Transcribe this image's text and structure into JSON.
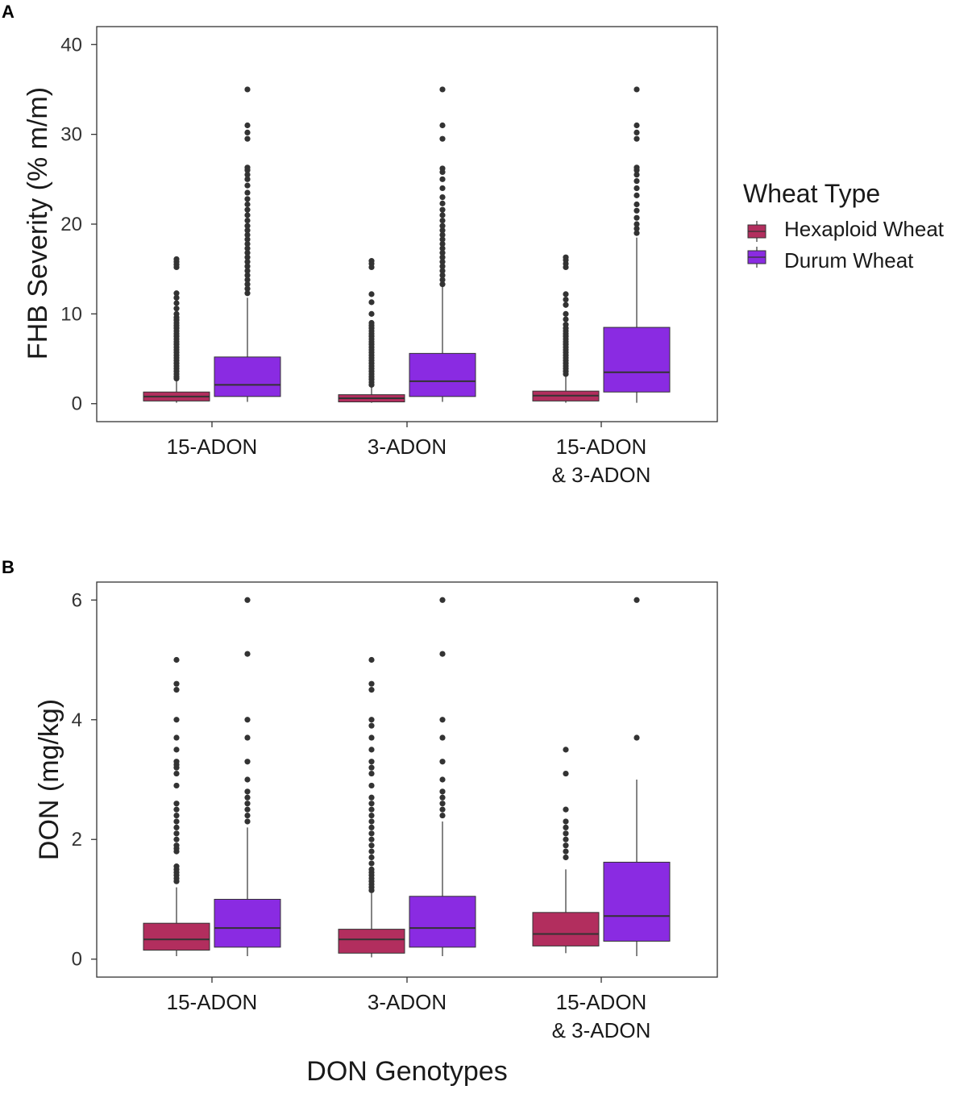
{
  "colors": {
    "hexaploid": "#b22e5e",
    "durum": "#8a2be2",
    "median": "#333333",
    "outlier": "#333333",
    "frame": "#333333"
  },
  "legend": {
    "title": "Wheat Type",
    "items": [
      "Hexaploid Wheat",
      "Durum Wheat"
    ]
  },
  "xlabel": "DON Genotypes",
  "chart_data": [
    {
      "panel": "A",
      "type": "boxplot",
      "ylabel": "FHB Severity (% m/m)",
      "ylim": [
        -2,
        42
      ],
      "yticks": [
        0,
        10,
        20,
        30,
        40
      ],
      "categories": [
        [
          "15-ADON"
        ],
        [
          "3-ADON"
        ],
        [
          "15-ADON",
          "& 3-ADON"
        ]
      ],
      "series": [
        {
          "name": "Hexaploid Wheat",
          "boxes": [
            {
              "min": 0.1,
              "q1": 0.3,
              "median": 0.8,
              "q3": 1.3,
              "max": 2.6,
              "outliers": [
                2.8,
                3.0,
                3.3,
                3.6,
                3.9,
                4.2,
                4.5,
                4.8,
                5.1,
                5.4,
                5.7,
                6.0,
                6.3,
                6.6,
                6.9,
                7.2,
                7.5,
                7.8,
                8.1,
                8.4,
                8.7,
                9.0,
                9.3,
                9.6,
                10.0,
                10.6,
                11.2,
                11.8,
                12.3,
                15.2,
                15.5,
                15.8,
                16.1
              ]
            },
            {
              "min": 0.1,
              "q1": 0.2,
              "median": 0.6,
              "q3": 1.0,
              "max": 1.9,
              "outliers": [
                2.1,
                2.4,
                2.7,
                3.0,
                3.3,
                3.6,
                3.9,
                4.2,
                4.5,
                4.8,
                5.1,
                5.4,
                5.7,
                6.0,
                6.3,
                6.6,
                6.9,
                7.2,
                7.5,
                7.8,
                8.1,
                8.4,
                8.7,
                9.0,
                10.0,
                11.3,
                12.2,
                15.2,
                15.6,
                15.9
              ]
            },
            {
              "min": 0.1,
              "q1": 0.3,
              "median": 0.9,
              "q3": 1.4,
              "max": 3.0,
              "outliers": [
                3.3,
                3.6,
                3.9,
                4.2,
                4.5,
                4.8,
                5.1,
                5.4,
                5.7,
                6.0,
                6.3,
                6.6,
                6.9,
                7.2,
                7.5,
                7.8,
                8.1,
                8.4,
                8.8,
                9.4,
                10.0,
                11.0,
                11.6,
                12.2,
                15.2,
                15.6,
                16.0,
                16.3
              ]
            }
          ]
        },
        {
          "name": "Durum Wheat",
          "boxes": [
            {
              "min": 0.2,
              "q1": 0.8,
              "median": 2.1,
              "q3": 5.2,
              "max": 11.8,
              "outliers": [
                12.3,
                12.8,
                13.3,
                13.8,
                14.3,
                14.8,
                15.3,
                15.8,
                16.3,
                16.8,
                17.3,
                17.8,
                18.3,
                18.8,
                19.3,
                19.8,
                20.4,
                21.0,
                21.6,
                22.2,
                22.8,
                23.5,
                24.3,
                25.0,
                25.5,
                26.0,
                26.3,
                29.5,
                30.2,
                31.0,
                35.0
              ]
            },
            {
              "min": 0.2,
              "q1": 0.8,
              "median": 2.5,
              "q3": 5.6,
              "max": 13.0,
              "outliers": [
                13.3,
                13.8,
                14.3,
                14.8,
                15.3,
                15.8,
                16.3,
                16.8,
                17.3,
                17.8,
                18.3,
                18.8,
                19.3,
                19.8,
                20.4,
                21.0,
                21.6,
                22.3,
                23.0,
                24.0,
                25.0,
                25.8,
                26.2,
                29.5,
                31.0,
                35.0
              ]
            },
            {
              "min": 0.1,
              "q1": 1.3,
              "median": 3.5,
              "q3": 8.5,
              "max": 18.5,
              "outliers": [
                19.0,
                19.5,
                20.0,
                20.7,
                21.5,
                22.2,
                23.2,
                24.0,
                24.8,
                25.5,
                26.0,
                26.3,
                29.5,
                30.2,
                31.0,
                35.0
              ]
            }
          ]
        }
      ]
    },
    {
      "panel": "B",
      "type": "boxplot",
      "ylabel": "DON (mg/kg)",
      "ylim": [
        -0.3,
        6.3
      ],
      "yticks": [
        0,
        2,
        4,
        6
      ],
      "categories": [
        [
          "15-ADON"
        ],
        [
          "3-ADON"
        ],
        [
          "15-ADON",
          "& 3-ADON"
        ]
      ],
      "series": [
        {
          "name": "Hexaploid Wheat",
          "boxes": [
            {
              "min": 0.05,
              "q1": 0.15,
              "median": 0.33,
              "q3": 0.6,
              "max": 1.2,
              "outliers": [
                1.3,
                1.35,
                1.4,
                1.45,
                1.5,
                1.55,
                1.8,
                1.85,
                1.9,
                2.0,
                2.1,
                2.2,
                2.3,
                2.4,
                2.5,
                2.6,
                2.9,
                3.1,
                3.2,
                3.25,
                3.3,
                3.5,
                3.7,
                4.0,
                4.5,
                4.6,
                5.0
              ]
            },
            {
              "min": 0.03,
              "q1": 0.1,
              "median": 0.33,
              "q3": 0.5,
              "max": 1.1,
              "outliers": [
                1.15,
                1.2,
                1.25,
                1.3,
                1.35,
                1.4,
                1.45,
                1.5,
                1.6,
                1.7,
                1.8,
                1.9,
                2.0,
                2.1,
                2.2,
                2.3,
                2.4,
                2.5,
                2.6,
                2.7,
                2.9,
                3.1,
                3.2,
                3.3,
                3.5,
                3.7,
                3.9,
                4.0,
                4.5,
                4.6,
                5.0
              ]
            },
            {
              "min": 0.1,
              "q1": 0.22,
              "median": 0.42,
              "q3": 0.78,
              "max": 1.5,
              "outliers": [
                1.7,
                1.8,
                1.9,
                2.0,
                2.1,
                2.2,
                2.3,
                2.5,
                3.1,
                3.5
              ]
            }
          ]
        },
        {
          "name": "Durum Wheat",
          "boxes": [
            {
              "min": 0.05,
              "q1": 0.2,
              "median": 0.52,
              "q3": 1.0,
              "max": 2.2,
              "outliers": [
                2.3,
                2.4,
                2.5,
                2.6,
                2.7,
                2.8,
                3.0,
                3.3,
                3.7,
                4.0,
                5.1,
                6.0
              ]
            },
            {
              "min": 0.05,
              "q1": 0.2,
              "median": 0.52,
              "q3": 1.05,
              "max": 2.3,
              "outliers": [
                2.4,
                2.5,
                2.6,
                2.7,
                2.8,
                3.0,
                3.3,
                3.7,
                4.0,
                5.1,
                6.0
              ]
            },
            {
              "min": 0.05,
              "q1": 0.3,
              "median": 0.72,
              "q3": 1.62,
              "max": 3.0,
              "outliers": [
                3.7,
                6.0
              ]
            }
          ]
        }
      ]
    }
  ]
}
